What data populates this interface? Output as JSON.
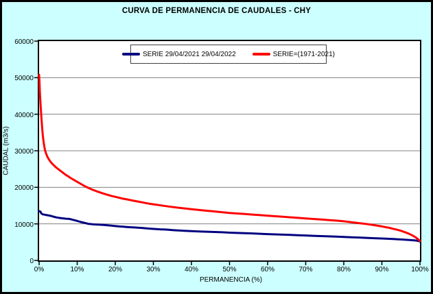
{
  "title": "CURVA DE PERMANENCIA DE CAUDALES - CHY",
  "colors": {
    "background": "#CCFFFF",
    "plot_background": "#FFFFFF",
    "gridline": "#808080",
    "axis": "#000000",
    "series_blue": "#000080",
    "series_red": "#FF0000"
  },
  "chart_data": {
    "type": "line",
    "title": "CURVA DE PERMANENCIA DE CAUDALES - CHY",
    "xlabel": "PERMANENCIA (%)",
    "ylabel": "CAUDAL (m3/s)",
    "xlim": [
      0,
      100
    ],
    "ylim": [
      0,
      60000
    ],
    "x_tick_values": [
      0,
      10,
      20,
      30,
      40,
      50,
      60,
      70,
      80,
      90,
      100
    ],
    "x_tick_labels": [
      "0%",
      "10%",
      "20%",
      "30%",
      "40%",
      "50%",
      "60%",
      "70%",
      "80%",
      "90%",
      "100%"
    ],
    "y_tick_values": [
      0,
      10000,
      20000,
      30000,
      40000,
      50000,
      60000
    ],
    "y_tick_labels": [
      "0",
      "10000",
      "20000",
      "30000",
      "40000",
      "50000",
      "60000"
    ],
    "grid": "horizontal",
    "legend_position": "top-center",
    "series": [
      {
        "name": "SERIE 29/04/2021 29/04/2022",
        "color": "#000080",
        "line_width": 3,
        "points": [
          [
            0,
            13500
          ],
          [
            0.2,
            13400
          ],
          [
            0.4,
            13300
          ],
          [
            0.5,
            12950
          ],
          [
            0.7,
            12750
          ],
          [
            1,
            12600
          ],
          [
            1.5,
            12500
          ],
          [
            2,
            12400
          ],
          [
            2.5,
            12300
          ],
          [
            3,
            12200
          ],
          [
            3.5,
            12050
          ],
          [
            4,
            11900
          ],
          [
            4.5,
            11780
          ],
          [
            5,
            11680
          ],
          [
            5.5,
            11600
          ],
          [
            6,
            11530
          ],
          [
            6.5,
            11470
          ],
          [
            7,
            11420
          ],
          [
            7.5,
            11390
          ],
          [
            8,
            11340
          ],
          [
            8.5,
            11220
          ],
          [
            9,
            11080
          ],
          [
            9.5,
            10950
          ],
          [
            10,
            10800
          ],
          [
            10.5,
            10650
          ],
          [
            11,
            10500
          ],
          [
            11.5,
            10380
          ],
          [
            12,
            10250
          ],
          [
            12.5,
            10120
          ],
          [
            13,
            10000
          ],
          [
            13.5,
            9950
          ],
          [
            14,
            9900
          ],
          [
            15,
            9820
          ],
          [
            16,
            9760
          ],
          [
            17,
            9700
          ],
          [
            18,
            9600
          ],
          [
            19,
            9500
          ],
          [
            20,
            9400
          ],
          [
            21,
            9300
          ],
          [
            22,
            9220
          ],
          [
            23,
            9150
          ],
          [
            24,
            9080
          ],
          [
            25,
            9020
          ],
          [
            26,
            8950
          ],
          [
            27,
            8880
          ],
          [
            28,
            8800
          ],
          [
            29,
            8700
          ],
          [
            30,
            8620
          ],
          [
            31,
            8550
          ],
          [
            32,
            8500
          ],
          [
            33,
            8450
          ],
          [
            34,
            8380
          ],
          [
            35,
            8300
          ],
          [
            36,
            8230
          ],
          [
            37,
            8170
          ],
          [
            38,
            8120
          ],
          [
            39,
            8060
          ],
          [
            40,
            8000
          ],
          [
            42,
            7920
          ],
          [
            44,
            7850
          ],
          [
            46,
            7780
          ],
          [
            48,
            7700
          ],
          [
            50,
            7600
          ],
          [
            52,
            7520
          ],
          [
            54,
            7450
          ],
          [
            56,
            7380
          ],
          [
            58,
            7300
          ],
          [
            60,
            7200
          ],
          [
            62,
            7120
          ],
          [
            64,
            7050
          ],
          [
            66,
            6980
          ],
          [
            68,
            6900
          ],
          [
            70,
            6820
          ],
          [
            72,
            6740
          ],
          [
            74,
            6660
          ],
          [
            76,
            6580
          ],
          [
            78,
            6500
          ],
          [
            80,
            6420
          ],
          [
            82,
            6340
          ],
          [
            84,
            6260
          ],
          [
            86,
            6170
          ],
          [
            88,
            6080
          ],
          [
            90,
            6000
          ],
          [
            91,
            5950
          ],
          [
            92,
            5900
          ],
          [
            93,
            5850
          ],
          [
            94,
            5790
          ],
          [
            95,
            5730
          ],
          [
            96,
            5670
          ],
          [
            97,
            5600
          ],
          [
            98,
            5530
          ],
          [
            99,
            5430
          ],
          [
            99.5,
            5350
          ],
          [
            100,
            5200
          ]
        ]
      },
      {
        "name": "SERIE=(1971-2021)",
        "color": "#FF0000",
        "line_width": 3,
        "points": [
          [
            0,
            50800
          ],
          [
            0.1,
            48500
          ],
          [
            0.2,
            46000
          ],
          [
            0.3,
            44000
          ],
          [
            0.45,
            41500
          ],
          [
            0.6,
            39200
          ],
          [
            0.8,
            36300
          ],
          [
            1,
            34000
          ],
          [
            1.2,
            32200
          ],
          [
            1.5,
            30400
          ],
          [
            1.8,
            29300
          ],
          [
            2.2,
            28300
          ],
          [
            2.6,
            27600
          ],
          [
            3,
            27000
          ],
          [
            3.5,
            26400
          ],
          [
            4,
            25900
          ],
          [
            4.5,
            25400
          ],
          [
            5,
            25000
          ],
          [
            5.5,
            24600
          ],
          [
            6,
            24200
          ],
          [
            6.5,
            23800
          ],
          [
            7,
            23400
          ],
          [
            7.5,
            23100
          ],
          [
            8,
            22750
          ],
          [
            8.5,
            22400
          ],
          [
            9,
            22100
          ],
          [
            9.5,
            21800
          ],
          [
            10,
            21500
          ],
          [
            11,
            20900
          ],
          [
            12,
            20300
          ],
          [
            13,
            19800
          ],
          [
            14,
            19350
          ],
          [
            15,
            18950
          ],
          [
            16,
            18600
          ],
          [
            17,
            18250
          ],
          [
            18,
            17950
          ],
          [
            19,
            17650
          ],
          [
            20,
            17400
          ],
          [
            21,
            17150
          ],
          [
            22,
            16900
          ],
          [
            23,
            16700
          ],
          [
            24,
            16500
          ],
          [
            25,
            16300
          ],
          [
            26,
            16100
          ],
          [
            27,
            15900
          ],
          [
            28,
            15700
          ],
          [
            29,
            15500
          ],
          [
            30,
            15350
          ],
          [
            32,
            15050
          ],
          [
            34,
            14750
          ],
          [
            36,
            14500
          ],
          [
            38,
            14250
          ],
          [
            40,
            14000
          ],
          [
            42,
            13800
          ],
          [
            44,
            13600
          ],
          [
            46,
            13400
          ],
          [
            48,
            13200
          ],
          [
            50,
            13000
          ],
          [
            52,
            12850
          ],
          [
            54,
            12700
          ],
          [
            56,
            12550
          ],
          [
            58,
            12400
          ],
          [
            60,
            12250
          ],
          [
            62,
            12100
          ],
          [
            64,
            11950
          ],
          [
            66,
            11800
          ],
          [
            68,
            11650
          ],
          [
            70,
            11500
          ],
          [
            72,
            11350
          ],
          [
            74,
            11200
          ],
          [
            76,
            11050
          ],
          [
            78,
            10900
          ],
          [
            80,
            10700
          ],
          [
            82,
            10450
          ],
          [
            84,
            10200
          ],
          [
            86,
            9950
          ],
          [
            88,
            9650
          ],
          [
            90,
            9300
          ],
          [
            91,
            9100
          ],
          [
            92,
            8900
          ],
          [
            93,
            8650
          ],
          [
            94,
            8400
          ],
          [
            95,
            8100
          ],
          [
            96,
            7750
          ],
          [
            97,
            7350
          ],
          [
            98,
            6850
          ],
          [
            98.5,
            6550
          ],
          [
            99,
            6200
          ],
          [
            99.5,
            5800
          ],
          [
            100,
            5300
          ]
        ]
      }
    ]
  }
}
